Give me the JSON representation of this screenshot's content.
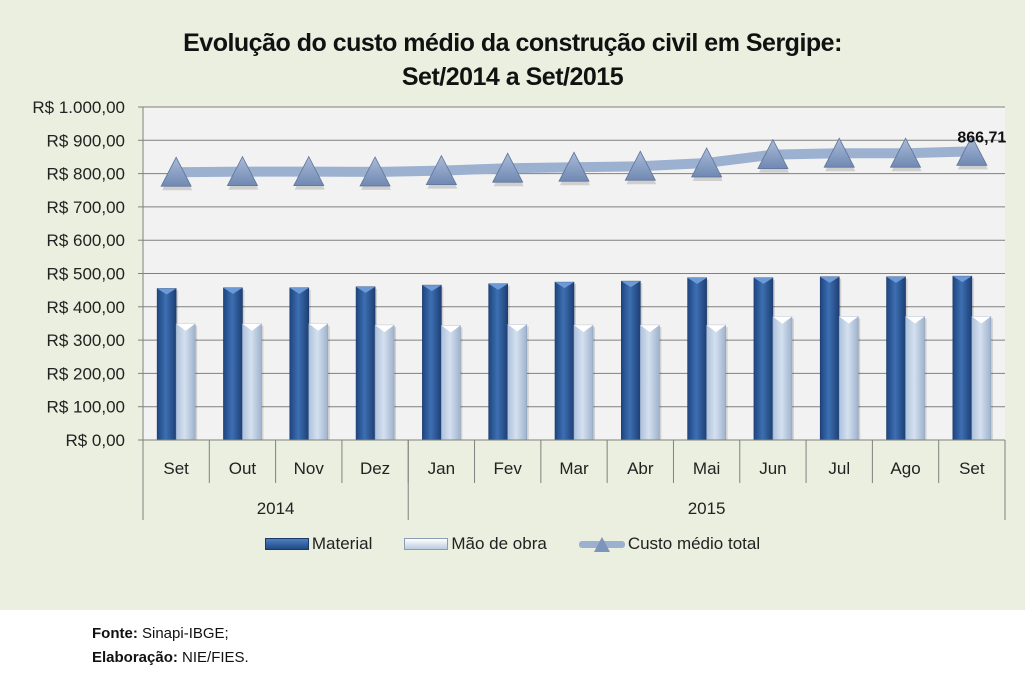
{
  "chart_data": {
    "type": "bar",
    "title": "Evolução do custo médio da construção civil em Sergipe:",
    "subtitle": "Set/2014 a Set/2015",
    "xlabel": "",
    "ylabel": "",
    "ylim": [
      0,
      1000
    ],
    "ytick_step": 100,
    "ytick_labels": [
      "R$ 0,00",
      "R$ 100,00",
      "R$ 200,00",
      "R$ 300,00",
      "R$ 400,00",
      "R$ 500,00",
      "R$ 600,00",
      "R$ 700,00",
      "R$ 800,00",
      "R$ 900,00",
      "R$ 1.000,00"
    ],
    "grid": true,
    "categories": [
      "Set",
      "Out",
      "Nov",
      "Dez",
      "Jan",
      "Fev",
      "Mar",
      "Abr",
      "Mai",
      "Jun",
      "Jul",
      "Ago",
      "Set"
    ],
    "year_groups": [
      {
        "label": "2014",
        "count": 4
      },
      {
        "label": "2015",
        "count": 9
      }
    ],
    "series": [
      {
        "name": "Material",
        "type": "bar",
        "color": "#2b5a9a",
        "values": [
          455,
          457,
          457,
          460,
          465,
          469,
          474,
          477,
          487,
          487,
          490,
          490,
          492
        ]
      },
      {
        "name": "Mão de obra",
        "type": "bar",
        "color": "#c5d5ea",
        "values": [
          349,
          349,
          349,
          345,
          344,
          347,
          345,
          345,
          345,
          370,
          371,
          371,
          371
        ]
      },
      {
        "name": "Custo médio total",
        "type": "line",
        "color": "#9cb0d0",
        "marker": "triangle",
        "values": [
          804,
          806,
          806,
          805,
          809,
          816,
          819,
          822,
          832,
          857,
          861,
          861,
          866.71
        ]
      }
    ],
    "annotations": [
      {
        "series": "Custo médio total",
        "index": 12,
        "text": "866,71"
      }
    ],
    "legend_position": "bottom"
  },
  "title_line1": "Evolução do custo médio da construção civil em Sergipe:",
  "title_line2": "Set/2014 a Set/2015",
  "legend": [
    {
      "label": "Material"
    },
    {
      "label": "Mão de obra"
    },
    {
      "label": "Custo médio total"
    }
  ],
  "footer": {
    "source_label": "Fonte:",
    "source_value": " Sinapi-IBGE;",
    "credit_label": "Elaboração:",
    "credit_value": " NIE/FIES."
  }
}
